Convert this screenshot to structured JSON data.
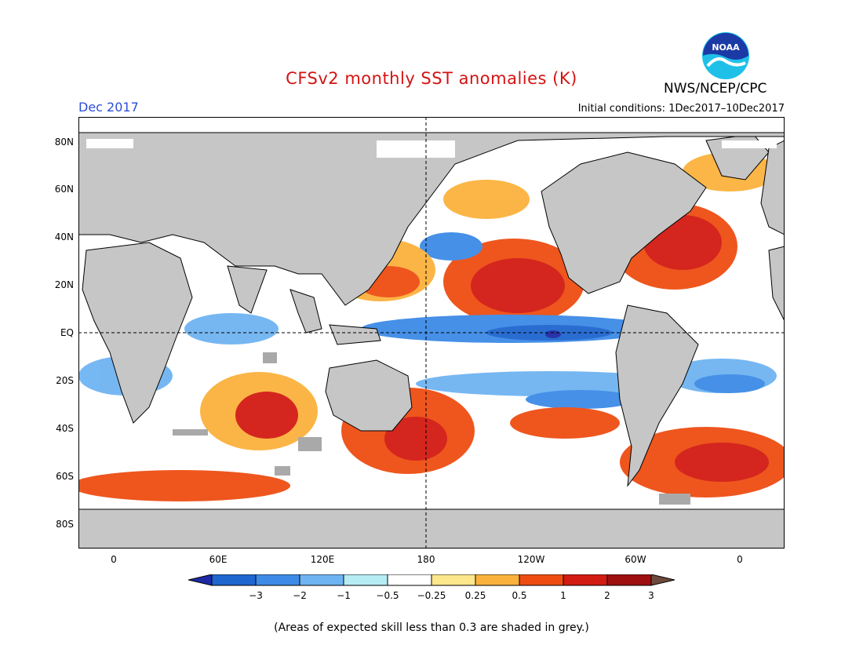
{
  "title": "CFSv2 monthly SST anomalies (K)",
  "month_label": "Dec 2017",
  "initial_conditions": "Initial conditions: 1Dec2017–10Dec2017",
  "agency": "NWS/NCEP/CPC",
  "logo_text": "NOAA",
  "lat_labels": [
    "80N",
    "60N",
    "40N",
    "20N",
    "EQ",
    "20S",
    "40S",
    "60S",
    "80S"
  ],
  "lon_labels": [
    "0",
    "60E",
    "120E",
    "180",
    "120W",
    "60W",
    "0"
  ],
  "colorbar": {
    "tick_labels": [
      "−3",
      "−2",
      "−1",
      "−0.5",
      "−0.25",
      "0.25",
      "0.5",
      "1",
      "2",
      "3"
    ],
    "colors": [
      "#1e2aa5",
      "#1f66cf",
      "#3d8be6",
      "#6fb4f2",
      "#b6ecf4",
      "#ffffff",
      "#fde68b",
      "#fbb23d",
      "#ee4d12",
      "#d21b12",
      "#9e0f0f",
      "#6e4a3c"
    ]
  },
  "land_color": "#c6c6c6",
  "note": "(Areas of expected skill less than 0.3 are shaded in grey.)"
}
